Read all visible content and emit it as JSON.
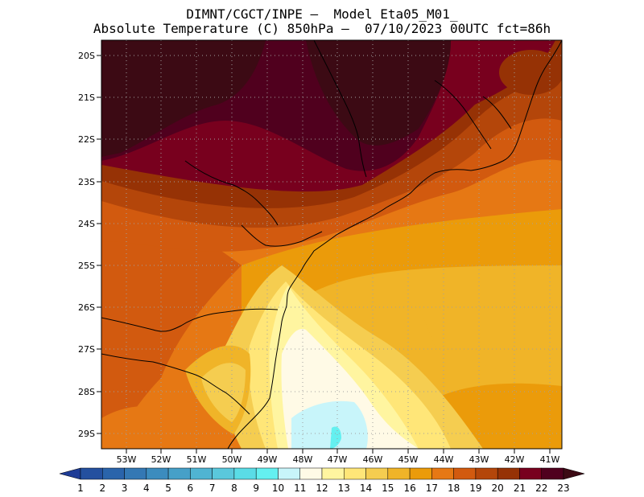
{
  "title": {
    "line1": "DIMNT/CGCT/INPE —  Model Eta05_M01_",
    "line2": "Absolute Temperature (C) 850hPa —  07/10/2023 00UTC fct=86h"
  },
  "map": {
    "lat_labels": [
      "20S",
      "21S",
      "22S",
      "23S",
      "24S",
      "25S",
      "26S",
      "27S",
      "28S",
      "29S"
    ],
    "lon_labels": [
      "53W",
      "52W",
      "51W",
      "50W",
      "49W",
      "48W",
      "47W",
      "46W",
      "45W",
      "44W",
      "43W",
      "42W",
      "41W"
    ],
    "grid": "dotted",
    "region": "Southern and southeastern Brazil coast (Paraná, Santa Catarina, São Paulo, Rio de Janeiro)",
    "lon_range": [
      -53.6,
      -40.6
    ],
    "lat_range": [
      -29.4,
      -19.8
    ]
  },
  "colorbar": {
    "labels": [
      "1",
      "2",
      "3",
      "4",
      "5",
      "6",
      "7",
      "8",
      "9",
      "10",
      "11",
      "12",
      "13",
      "14",
      "15",
      "16",
      "17",
      "18",
      "19",
      "20",
      "21",
      "22",
      "23"
    ],
    "colors": [
      "#1e3c96",
      "#24509f",
      "#2a64ab",
      "#3478b4",
      "#3c8cbe",
      "#46a0c8",
      "#50b4d2",
      "#5ac8dc",
      "#5adce6",
      "#64f0f0",
      "#c8f5fa",
      "#fffae6",
      "#fff5a0",
      "#ffe678",
      "#f5cd50",
      "#f0b428",
      "#eb9b0a",
      "#e67814",
      "#d25a0f",
      "#b4460a",
      "#963205",
      "#78001e",
      "#50001e",
      "#3c0a14"
    ]
  }
}
